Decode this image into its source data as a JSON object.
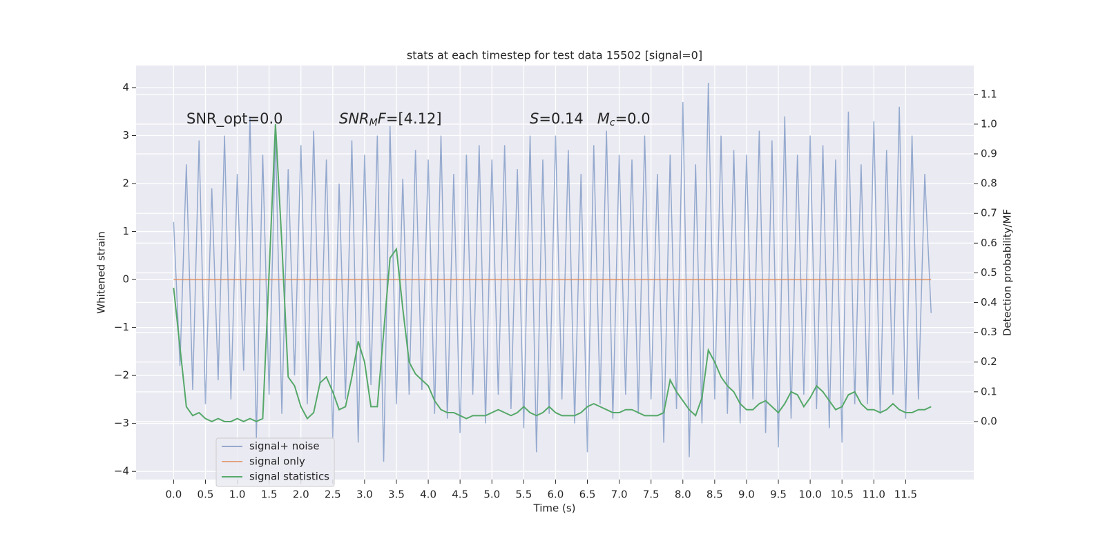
{
  "chart_data": {
    "type": "line",
    "title": "stats at each timestep for test data 15502 [signal=0]",
    "x_label": "Time (s)",
    "y_label": "Whitened strain",
    "y2_label": "Detection probability/MF",
    "annotations": [
      {
        "parts": [
          {
            "text": "SNR_opt=0.0"
          }
        ]
      },
      {
        "parts": [
          {
            "text": "SNR",
            "italic": true
          },
          {
            "text": "M",
            "italic": true,
            "sub": true
          },
          {
            "text": "F",
            "italic": true
          },
          {
            "text": "=[4.12]"
          }
        ]
      },
      {
        "parts": [
          {
            "text": "S",
            "italic": true
          },
          {
            "text": "=0.14   "
          },
          {
            "text": "M",
            "italic": true
          },
          {
            "text": "c",
            "italic": true,
            "sub": true
          },
          {
            "text": "=0.0"
          }
        ]
      }
    ],
    "x": [
      0.0,
      0.1,
      0.2,
      0.3,
      0.4,
      0.5,
      0.6,
      0.7,
      0.8,
      0.9,
      1.0,
      1.1,
      1.2,
      1.3,
      1.4,
      1.5,
      1.6,
      1.7,
      1.8,
      1.9,
      2.0,
      2.1,
      2.2,
      2.3,
      2.4,
      2.5,
      2.6,
      2.7,
      2.8,
      2.9,
      3.0,
      3.1,
      3.2,
      3.3,
      3.4,
      3.5,
      3.6,
      3.7,
      3.8,
      3.9,
      4.0,
      4.1,
      4.2,
      4.3,
      4.4,
      4.5,
      4.6,
      4.7,
      4.8,
      4.9,
      5.0,
      5.1,
      5.2,
      5.3,
      5.4,
      5.5,
      5.6,
      5.7,
      5.8,
      5.9,
      6.0,
      6.1,
      6.2,
      6.3,
      6.4,
      6.5,
      6.6,
      6.7,
      6.8,
      6.9,
      7.0,
      7.1,
      7.2,
      7.3,
      7.4,
      7.5,
      7.6,
      7.7,
      7.8,
      7.9,
      8.0,
      8.1,
      8.2,
      8.3,
      8.4,
      8.5,
      8.6,
      8.7,
      8.8,
      8.9,
      9.0,
      9.1,
      9.2,
      9.3,
      9.4,
      9.5,
      9.6,
      9.7,
      9.8,
      9.9,
      10.0,
      10.1,
      10.2,
      10.3,
      10.4,
      10.5,
      10.6,
      10.7,
      10.8,
      10.9,
      11.0,
      11.1,
      11.2,
      11.3,
      11.4,
      11.5,
      11.6,
      11.7,
      11.8,
      11.9
    ],
    "series": [
      {
        "name": "signal+ noise",
        "color": "#4c72b0",
        "alpha": 0.55,
        "values": [
          1.2,
          -1.8,
          2.4,
          -2.3,
          2.9,
          -2.6,
          1.9,
          -2.1,
          3.0,
          -2.5,
          2.2,
          -1.9,
          3.4,
          -3.3,
          2.6,
          -2.4,
          3.0,
          -2.8,
          2.3,
          -2.0,
          2.8,
          -2.6,
          3.1,
          -2.2,
          2.5,
          -3.3,
          2.0,
          -2.5,
          2.9,
          -3.4,
          2.6,
          -2.2,
          3.0,
          -3.8,
          3.2,
          -2.6,
          2.1,
          -2.4,
          2.7,
          -2.3,
          2.5,
          -2.8,
          3.0,
          -2.9,
          2.2,
          -3.2,
          2.6,
          -2.4,
          2.8,
          -3.0,
          2.5,
          -2.4,
          2.8,
          -2.7,
          2.3,
          -3.1,
          3.0,
          -3.6,
          2.5,
          -2.8,
          3.0,
          -2.5,
          2.7,
          -3.0,
          2.2,
          -3.6,
          2.8,
          -2.6,
          3.1,
          -2.9,
          2.6,
          -2.4,
          2.5,
          -2.8,
          3.0,
          -2.5,
          2.2,
          -3.4,
          2.6,
          -2.7,
          3.7,
          -3.7,
          2.4,
          -3.0,
          4.1,
          -2.5,
          3.0,
          -2.8,
          2.7,
          -3.0,
          2.6,
          -2.5,
          3.1,
          -3.2,
          2.9,
          -3.5,
          3.4,
          -2.9,
          2.6,
          -2.4,
          3.0,
          -2.7,
          2.8,
          -3.1,
          2.5,
          -3.4,
          3.5,
          -2.6,
          2.4,
          -2.6,
          3.3,
          -2.8,
          2.7,
          -2.4,
          3.6,
          -2.9,
          3.0,
          -2.5,
          2.2,
          -0.7
        ]
      },
      {
        "name": "signal only",
        "color": "#dd8452",
        "alpha": 0.7,
        "values": [
          0,
          0,
          0,
          0,
          0,
          0,
          0,
          0,
          0,
          0,
          0,
          0,
          0,
          0,
          0,
          0,
          0,
          0,
          0,
          0,
          0,
          0,
          0,
          0,
          0,
          0,
          0,
          0,
          0,
          0,
          0,
          0,
          0,
          0,
          0,
          0,
          0,
          0,
          0,
          0,
          0,
          0,
          0,
          0,
          0,
          0,
          0,
          0,
          0,
          0,
          0,
          0,
          0,
          0,
          0,
          0,
          0,
          0,
          0,
          0,
          0,
          0,
          0,
          0,
          0,
          0,
          0,
          0,
          0,
          0,
          0,
          0,
          0,
          0,
          0,
          0,
          0,
          0,
          0,
          0,
          0,
          0,
          0,
          0,
          0,
          0,
          0,
          0,
          0,
          0,
          0,
          0,
          0,
          0,
          0,
          0,
          0,
          0,
          0,
          0,
          0,
          0,
          0,
          0,
          0,
          0,
          0,
          0,
          0,
          0,
          0,
          0,
          0,
          0,
          0,
          0,
          0,
          0,
          0,
          0
        ]
      },
      {
        "name": "signal statistics",
        "color": "#55a868",
        "alpha": 1,
        "axis": "y2",
        "values": [
          0.45,
          0.25,
          0.05,
          0.02,
          0.03,
          0.01,
          0.0,
          0.01,
          0.0,
          0.0,
          0.01,
          0.0,
          0.01,
          0.0,
          0.01,
          0.5,
          1.0,
          0.6,
          0.15,
          0.12,
          0.05,
          0.01,
          0.03,
          0.13,
          0.15,
          0.1,
          0.04,
          0.05,
          0.15,
          0.27,
          0.2,
          0.05,
          0.05,
          0.3,
          0.55,
          0.58,
          0.38,
          0.2,
          0.16,
          0.14,
          0.12,
          0.07,
          0.04,
          0.03,
          0.03,
          0.02,
          0.01,
          0.02,
          0.02,
          0.02,
          0.03,
          0.04,
          0.03,
          0.02,
          0.03,
          0.05,
          0.03,
          0.02,
          0.03,
          0.05,
          0.03,
          0.02,
          0.02,
          0.02,
          0.03,
          0.05,
          0.06,
          0.05,
          0.04,
          0.03,
          0.03,
          0.04,
          0.04,
          0.03,
          0.02,
          0.02,
          0.02,
          0.03,
          0.14,
          0.1,
          0.07,
          0.04,
          0.02,
          0.08,
          0.24,
          0.2,
          0.15,
          0.12,
          0.1,
          0.06,
          0.04,
          0.04,
          0.06,
          0.07,
          0.05,
          0.03,
          0.06,
          0.1,
          0.09,
          0.05,
          0.08,
          0.12,
          0.1,
          0.07,
          0.04,
          0.05,
          0.09,
          0.1,
          0.06,
          0.04,
          0.04,
          0.03,
          0.04,
          0.06,
          0.04,
          0.03,
          0.03,
          0.04,
          0.04,
          0.05
        ]
      }
    ],
    "xlim": [
      -0.59,
      12.57
    ],
    "ylim": [
      -4.17,
      4.46
    ],
    "y2lim": [
      -0.195,
      1.197
    ],
    "xticks": [
      {
        "value": 0,
        "label": "0.0"
      },
      {
        "value": 0.5,
        "label": "0.5"
      },
      {
        "value": 1,
        "label": "1.0"
      },
      {
        "value": 1.5,
        "label": "1.5"
      },
      {
        "value": 2,
        "label": "2.0"
      },
      {
        "value": 2.5,
        "label": "2.5"
      },
      {
        "value": 3,
        "label": "3.0"
      },
      {
        "value": 3.5,
        "label": "3.5"
      },
      {
        "value": 4,
        "label": "4.0"
      },
      {
        "value": 4.5,
        "label": "4.5"
      },
      {
        "value": 5,
        "label": "5.0"
      },
      {
        "value": 5.5,
        "label": "5.5"
      },
      {
        "value": 6,
        "label": "6.0"
      },
      {
        "value": 6.5,
        "label": "6.5"
      },
      {
        "value": 7,
        "label": "7.0"
      },
      {
        "value": 7.5,
        "label": "7.5"
      },
      {
        "value": 8,
        "label": "8.0"
      },
      {
        "value": 8.5,
        "label": "8.5"
      },
      {
        "value": 9,
        "label": "9.0"
      },
      {
        "value": 9.5,
        "label": "9.5"
      },
      {
        "value": 10,
        "label": "10.0"
      },
      {
        "value": 10.5,
        "label": "10.5"
      },
      {
        "value": 11,
        "label": "11.0"
      },
      {
        "value": 11.5,
        "label": "11.5"
      }
    ],
    "yticks": [
      {
        "value": -4,
        "label": "−4"
      },
      {
        "value": -3,
        "label": "−3"
      },
      {
        "value": -2,
        "label": "−2"
      },
      {
        "value": -1,
        "label": "−1"
      },
      0,
      1,
      2,
      3,
      4
    ],
    "y2ticks": [
      {
        "value": 0,
        "label": "0.0"
      },
      0.1,
      0.2,
      0.3,
      0.4,
      0.5,
      0.6,
      0.7,
      0.8,
      0.9,
      {
        "value": 1,
        "label": "1.0"
      },
      1.1
    ],
    "grid": true,
    "background": "#eaeaf2",
    "legend_loc": "lower left"
  }
}
